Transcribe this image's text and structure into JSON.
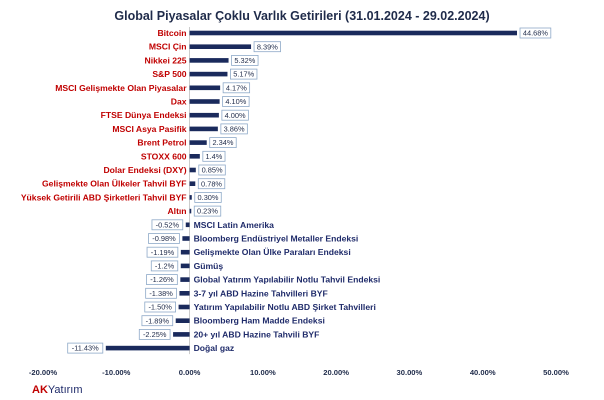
{
  "chart_data": {
    "type": "bar",
    "orientation": "horizontal",
    "title": "Global Piyasalar Çoklu Varlık Getirileri (31.01.2024 - 29.02.2024)",
    "xlim": [
      -20,
      50
    ],
    "x_ticks": [
      "-20.00%",
      "-10.00%",
      "0.00%",
      "10.00%",
      "20.00%",
      "30.00%",
      "40.00%",
      "50.00%"
    ],
    "x_tick_values": [
      -20,
      -10,
      0,
      10,
      20,
      30,
      40,
      50
    ],
    "categories": [
      "Bitcoin",
      "MSCI Çin",
      "Nikkei 225",
      "S&P 500",
      "MSCI Gelişmekte Olan Piyasalar",
      "Dax",
      "FTSE Dünya Endeksi",
      "MSCI Asya Pasifik",
      "Brent Petrol",
      "STOXX 600",
      "Dolar Endeksi (DXY)",
      "Gelişmekte Olan Ülkeler Tahvil BYF",
      "Yüksek Getirili ABD Şirketleri Tahvil BYF",
      "Altın",
      "MSCI Latin Amerika",
      "Bloomberg Endüstriyel Metaller Endeksi",
      "Gelişmekte Olan Ülke Paraları Endeksi",
      "Gümüş",
      "Global Yatırım Yapılabilir Notlu Tahvil Endeksi",
      "3-7 yıl ABD Hazine Tahvilleri BYF",
      "Yatırım Yapılabilir Notlu  ABD Şirket Tahvilleri",
      "Bloomberg Ham Madde Endeksi",
      "20+ yıl ABD Hazine Tahvili BYF",
      "Doğal gaz"
    ],
    "values": [
      44.68,
      8.39,
      5.32,
      5.17,
      4.17,
      4.1,
      4.0,
      3.86,
      2.34,
      1.4,
      0.85,
      0.78,
      0.3,
      0.23,
      -0.52,
      -0.98,
      -1.19,
      -1.2,
      -1.26,
      -1.38,
      -1.5,
      -1.89,
      -2.25,
      -11.43
    ],
    "value_labels": [
      "44.68%",
      "8.39%",
      "5.32%",
      "5.17%",
      "4.17%",
      "4.10%",
      "4.00%",
      "3.86%",
      "2.34%",
      "1.4%",
      "0.85%",
      "0.78%",
      "0.30%",
      "0.23%",
      "-0.52%",
      "-0.98%",
      "-1.19%",
      "-1.2%",
      "-1.26%",
      "-1.38%",
      "-1.50%",
      "-1.89%",
      "-2.25%",
      "-11.43%"
    ],
    "grid": false,
    "colors": {
      "bar": "#1a2a5c",
      "positive_label": "#c00000",
      "negative_label": "#1f2b6a",
      "box_border": "#8ea9c8"
    }
  },
  "brand": {
    "prefix": "AK",
    "suffix": "Yatırım",
    "prefix_color": "#c00000",
    "suffix_color": "#1f2b6a"
  }
}
